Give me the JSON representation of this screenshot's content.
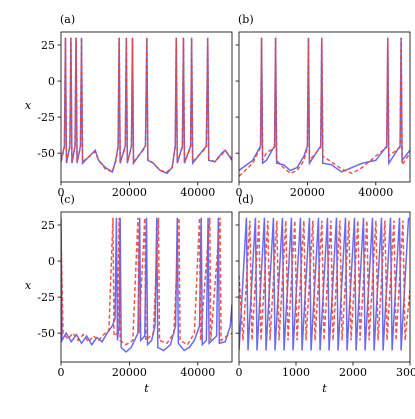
{
  "chart_data": [
    {
      "type": "line",
      "title": "(a)",
      "ylabel": "x",
      "xlim": [
        0,
        50000
      ],
      "ylim": [
        -70,
        34
      ],
      "xticks": [
        0,
        20000,
        40000
      ],
      "yticks": [
        -50,
        -25,
        0,
        25
      ],
      "ytick_labels": true,
      "series": [
        {
          "color": "#5a5af0",
          "dashed": false,
          "x": [
            0,
            1000,
            1300,
            1600,
            2600,
            2900,
            3200,
            4100,
            4400,
            4700,
            5700,
            6000,
            6300,
            10000,
            11000,
            13000,
            15000,
            16000,
            16700,
            17000,
            17300,
            18800,
            19100,
            19400,
            20600,
            20900,
            21200,
            24700,
            25100,
            25400,
            27000,
            29000,
            31000,
            32500,
            33400,
            33700,
            34000,
            35500,
            35800,
            36100,
            37900,
            38200,
            38500,
            42500,
            42900,
            43200,
            45000,
            47000,
            48000,
            50000
          ],
          "values": [
            -55,
            -45,
            30,
            -57,
            -45,
            30,
            -57,
            -45,
            30,
            -57,
            -45,
            30,
            -57,
            -48,
            -55,
            -60,
            -63,
            -55,
            -45,
            30,
            -57,
            -45,
            30,
            -57,
            -45,
            30,
            -57,
            -45,
            30,
            -55,
            -57,
            -62,
            -64,
            -60,
            -45,
            30,
            -57,
            -45,
            30,
            -57,
            -45,
            30,
            -57,
            -45,
            30,
            -55,
            -56,
            -50,
            -48,
            -55
          ]
        },
        {
          "color": "#e8463a",
          "dashed": true,
          "x": [
            0,
            1000,
            1300,
            1600,
            2600,
            2900,
            3200,
            4100,
            4400,
            4700,
            5700,
            6000,
            6300,
            10000,
            11000,
            13000,
            15000,
            16000,
            16700,
            17000,
            17300,
            18800,
            19100,
            19400,
            20600,
            20900,
            21200,
            24700,
            25100,
            25400,
            27000,
            29000,
            31000,
            32500,
            33400,
            33700,
            34000,
            35500,
            35800,
            36100,
            37900,
            38200,
            38500,
            42500,
            42900,
            43200,
            45000,
            47000,
            48000,
            50000
          ],
          "values": [
            -56,
            -46,
            30,
            -56,
            -46,
            30,
            -56,
            -46,
            30,
            -56,
            -46,
            30,
            -56,
            -49,
            -55,
            -61,
            -63,
            -56,
            -46,
            30,
            -56,
            -46,
            30,
            -56,
            -46,
            30,
            -56,
            -46,
            30,
            -54,
            -57,
            -62,
            -63,
            -60,
            -46,
            30,
            -56,
            -46,
            30,
            -56,
            -46,
            30,
            -56,
            -46,
            30,
            -54,
            -56,
            -51,
            -48,
            -54
          ]
        }
      ]
    },
    {
      "type": "line",
      "title": "(b)",
      "xlim": [
        0,
        50000
      ],
      "ylim": [
        -70,
        34
      ],
      "xticks": [
        0,
        20000,
        40000
      ],
      "yticks": [
        -50,
        -25,
        0,
        25
      ],
      "ytick_labels": false,
      "series": [
        {
          "color": "#5a5af0",
          "dashed": false,
          "x": [
            0,
            4000,
            6300,
            6600,
            6900,
            8000,
            10400,
            10700,
            11000,
            13000,
            15000,
            17000,
            19000,
            20000,
            20300,
            20600,
            23900,
            24200,
            24500,
            27000,
            30000,
            33000,
            36000,
            40000,
            43200,
            43500,
            43800,
            47100,
            47400,
            47700,
            50000
          ],
          "values": [
            -62,
            -55,
            -45,
            30,
            -57,
            -55,
            -45,
            30,
            -57,
            -58,
            -62,
            -60,
            -52,
            -45,
            30,
            -57,
            -45,
            30,
            -57,
            -58,
            -63,
            -60,
            -57,
            -55,
            -45,
            30,
            -57,
            -45,
            30,
            -55,
            -48
          ]
        },
        {
          "color": "#e8463a",
          "dashed": true,
          "x": [
            0,
            4000,
            6300,
            6600,
            6900,
            8000,
            10400,
            10700,
            11000,
            13000,
            15000,
            17000,
            19000,
            20000,
            20300,
            20600,
            23900,
            24200,
            24500,
            27000,
            30000,
            33000,
            36000,
            40000,
            43200,
            43500,
            43800,
            47100,
            47400,
            47700,
            50000
          ],
          "values": [
            -66,
            -57,
            -46,
            30,
            -55,
            -50,
            -46,
            30,
            -55,
            -60,
            -64,
            -62,
            -55,
            -46,
            30,
            -55,
            -46,
            30,
            -52,
            -56,
            -61,
            -64,
            -60,
            -52,
            -46,
            30,
            -52,
            -46,
            30,
            -58,
            -50
          ]
        }
      ]
    },
    {
      "type": "line",
      "title": "(c)",
      "xlabel": "t",
      "ylabel": "x",
      "xlim": [
        0,
        50000
      ],
      "ylim": [
        -70,
        34
      ],
      "xticks": [
        0,
        20000,
        40000
      ],
      "yticks": [
        -50,
        -25,
        0,
        25
      ],
      "ytick_labels": true,
      "series": [
        {
          "color": "#5a5af0",
          "dashed": false,
          "x": [
            0,
            300,
            1500,
            3000,
            4500,
            6000,
            7500,
            9000,
            10500,
            12000,
            13500,
            15000,
            15800,
            16200,
            16500,
            17000,
            17300,
            17600,
            19000,
            20500,
            21500,
            22500,
            23000,
            23300,
            24500,
            25000,
            25300,
            26500,
            27500,
            28000,
            28300,
            30000,
            32000,
            33500,
            34000,
            34300,
            36000,
            37500,
            39000,
            40500,
            41000,
            41300,
            42500,
            43000,
            43300,
            45500,
            46000,
            46300,
            48000,
            49500,
            50000
          ],
          "values": [
            30,
            -55,
            -50,
            -56,
            -51,
            -57,
            -52,
            -58,
            -53,
            -56,
            -50,
            -45,
            -40,
            30,
            -55,
            -45,
            30,
            -60,
            -63,
            -60,
            -55,
            -50,
            30,
            -55,
            -52,
            30,
            -58,
            -55,
            -45,
            30,
            -60,
            -62,
            -58,
            -45,
            30,
            -57,
            -62,
            -60,
            -55,
            -45,
            30,
            -58,
            -55,
            30,
            -57,
            -52,
            30,
            -57,
            -56,
            -45,
            -30
          ]
        },
        {
          "color": "#e8463a",
          "dashed": true,
          "x": [
            0,
            600,
            2000,
            3500,
            5000,
            6500,
            8000,
            9500,
            11000,
            12500,
            14000,
            15200,
            15500,
            16500,
            17000,
            17300,
            19000,
            21000,
            22500,
            22800,
            24500,
            24800,
            27000,
            28500,
            28800,
            31000,
            33000,
            34500,
            34800,
            37000,
            39000,
            40500,
            40800,
            43500,
            43800,
            46500,
            46800,
            48500,
            50000
          ],
          "values": [
            20,
            -50,
            -54,
            -50,
            -55,
            -51,
            -56,
            -52,
            -55,
            -51,
            -48,
            30,
            -52,
            -50,
            30,
            -55,
            -58,
            -55,
            30,
            -50,
            30,
            -55,
            -50,
            30,
            -55,
            -57,
            -50,
            30,
            -55,
            -58,
            -50,
            30,
            -55,
            30,
            -55,
            30,
            -55,
            -52,
            -50
          ]
        }
      ]
    },
    {
      "type": "line",
      "title": "(d)",
      "xlabel": "t",
      "xlim": [
        0,
        3000
      ],
      "ylim": [
        -70,
        34
      ],
      "xticks": [
        0,
        1000,
        2000,
        3000
      ],
      "yticks": [
        -50,
        -25,
        0,
        25
      ],
      "ytick_labels": false,
      "series": [
        {
          "color": "#5a5af0",
          "dashed": false,
          "x": [
            0,
            130,
            158,
            288,
            316,
            446,
            474,
            604,
            632,
            762,
            790,
            920,
            948,
            1078,
            1106,
            1236,
            1264,
            1394,
            1422,
            1552,
            1580,
            1710,
            1738,
            1868,
            1896,
            2026,
            2054,
            2184,
            2212,
            2342,
            2370,
            2500,
            2528,
            2658,
            2686,
            2816,
            2844,
            2974
          ],
          "values": [
            -62,
            30,
            -62,
            30,
            -62,
            30,
            -62,
            30,
            -62,
            30,
            -62,
            30,
            -62,
            30,
            -62,
            30,
            -62,
            30,
            -62,
            30,
            -62,
            30,
            -62,
            30,
            -62,
            30,
            -62,
            30,
            -62,
            30,
            -62,
            30,
            -62,
            30,
            -62,
            30,
            -62,
            30
          ]
        },
        {
          "color": "#e8463a",
          "dashed": true,
          "x": [
            0,
            70,
            190,
            228,
            348,
            386,
            506,
            544,
            664,
            702,
            822,
            860,
            980,
            1018,
            1138,
            1176,
            1296,
            1334,
            1454,
            1492,
            1612,
            1650,
            1770,
            1808,
            1928,
            1966,
            2086,
            2124,
            2244,
            2282,
            2402,
            2440,
            2560,
            2598,
            2718,
            2756,
            2876,
            2914,
            3000
          ],
          "values": [
            -10,
            -55,
            28,
            -55,
            28,
            -55,
            28,
            -55,
            28,
            -55,
            28,
            -55,
            28,
            -55,
            28,
            -55,
            28,
            -55,
            28,
            -55,
            28,
            -55,
            28,
            -55,
            28,
            -55,
            28,
            -55,
            28,
            -55,
            28,
            -55,
            28,
            -55,
            28,
            -55,
            28,
            -55,
            -20
          ]
        }
      ]
    }
  ]
}
